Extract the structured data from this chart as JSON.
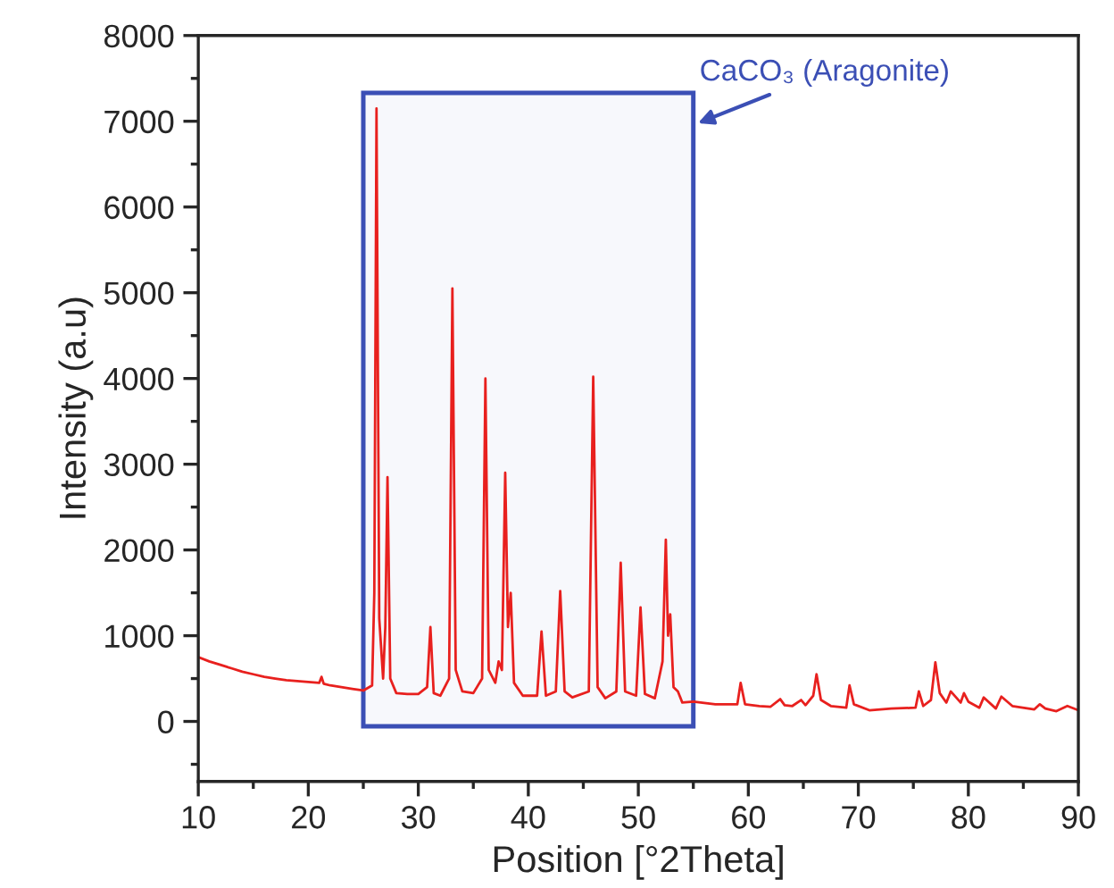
{
  "chart_data": {
    "type": "line",
    "xlabel": "Position [°2Theta]",
    "ylabel": "Intensity (a.u)",
    "xlim": [
      10,
      90
    ],
    "ylim": [
      -700,
      8000
    ],
    "xticks": [
      10,
      20,
      30,
      40,
      50,
      60,
      70,
      80,
      90
    ],
    "yticks": [
      0,
      1000,
      2000,
      3000,
      4000,
      5000,
      6000,
      7000,
      8000
    ],
    "grid": false,
    "legend": false,
    "marker": "none",
    "line_style": "solid",
    "bands": [
      {
        "axis": "x",
        "from": 25,
        "to": 55,
        "label": "CaCO₃ (Aragonite)",
        "color": "#3b4fb5"
      }
    ],
    "series": [
      {
        "color": "#e8201e",
        "x": [
          10,
          11,
          12,
          13,
          14,
          15,
          16,
          17,
          18,
          19,
          20,
          21,
          21.2,
          21.4,
          22,
          23,
          24,
          25,
          25.8,
          26.0,
          26.2,
          26.45,
          26.8,
          27.0,
          27.2,
          27.45,
          28,
          29,
          30,
          30.8,
          31.1,
          31.4,
          32,
          32.8,
          33.1,
          33.4,
          34,
          35,
          35.8,
          36.1,
          36.4,
          37.0,
          37.3,
          37.6,
          37.9,
          38.15,
          38.4,
          38.7,
          39.5,
          40.8,
          41.2,
          41.6,
          42.5,
          42.9,
          43.3,
          44,
          45.5,
          45.9,
          46.3,
          47,
          48.0,
          48.4,
          48.8,
          49.8,
          50.2,
          50.6,
          51.5,
          52.2,
          52.5,
          52.7,
          52.9,
          53.2,
          53.6,
          54,
          55,
          57,
          59.0,
          59.3,
          59.7,
          61,
          62,
          62.9,
          63.3,
          64,
          64.8,
          65.2,
          65.9,
          66.2,
          66.6,
          67.5,
          68.9,
          69.2,
          69.6,
          71,
          73,
          75.2,
          75.5,
          75.9,
          76.6,
          77.0,
          77.4,
          78.0,
          78.4,
          79.3,
          79.6,
          80,
          81,
          81.4,
          82.5,
          83,
          84,
          86,
          86.5,
          87,
          88,
          89,
          90
        ],
        "values": [
          750,
          700,
          660,
          620,
          580,
          550,
          520,
          500,
          480,
          470,
          460,
          450,
          520,
          440,
          420,
          400,
          380,
          360,
          420,
          1500,
          7150,
          1200,
          500,
          1100,
          2850,
          500,
          330,
          320,
          320,
          400,
          1100,
          330,
          300,
          500,
          5050,
          600,
          350,
          330,
          500,
          4000,
          600,
          450,
          700,
          600,
          2900,
          1100,
          1500,
          450,
          300,
          300,
          1050,
          300,
          350,
          1520,
          350,
          280,
          350,
          4020,
          400,
          270,
          350,
          1850,
          350,
          300,
          1330,
          320,
          270,
          700,
          2120,
          1000,
          1250,
          400,
          350,
          220,
          230,
          200,
          200,
          450,
          200,
          180,
          170,
          260,
          190,
          180,
          250,
          190,
          300,
          550,
          250,
          180,
          160,
          420,
          200,
          130,
          150,
          160,
          350,
          180,
          250,
          690,
          330,
          220,
          350,
          220,
          330,
          230,
          160,
          280,
          150,
          290,
          180,
          140,
          200,
          150,
          120,
          180,
          130
        ]
      }
    ]
  }
}
